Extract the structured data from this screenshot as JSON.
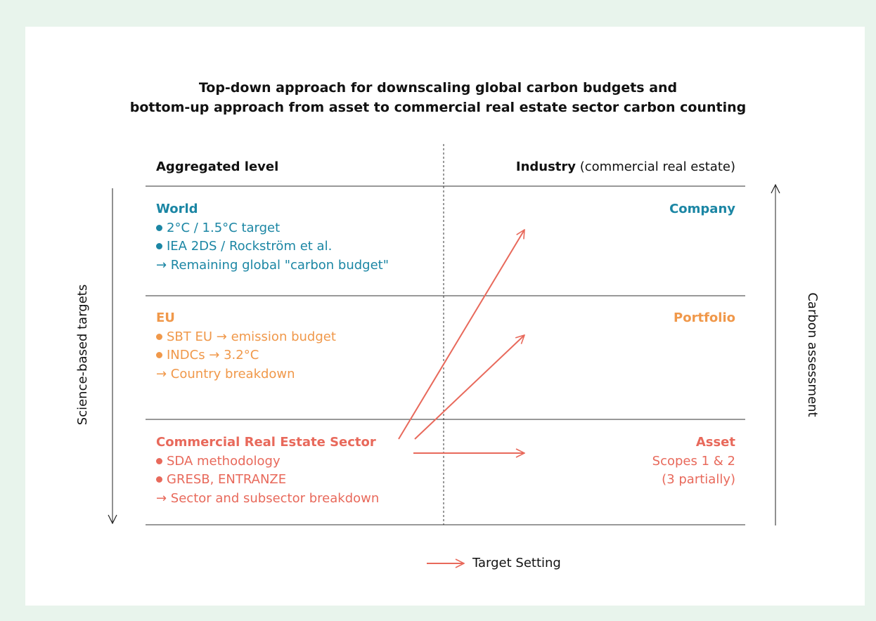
{
  "title": [
    "Top-down approach for downscaling global carbon budgets and",
    "bottom-up approach from asset to commercial real estate sector carbon counting"
  ],
  "headers": {
    "left": "Aggregated level",
    "right_bold": "Industry",
    "right_rest": " (commercial real estate)"
  },
  "axis_labels": {
    "left": "Science-based targets",
    "right": "Carbon assessment"
  },
  "rows": [
    {
      "color": "#1b86a4",
      "left": {
        "title": "World",
        "items": [
          "2°C / 1.5°C target",
          "IEA 2DS / Rockström et al.",
          "→ Remaining global \"carbon budget\""
        ]
      },
      "right": {
        "title": "Company",
        "lines": []
      }
    },
    {
      "color": "#f0984a",
      "left": {
        "title": "EU",
        "items": [
          "SBT EU → emission budget",
          "INDCs → 3.2°C",
          "→ Country breakdown"
        ]
      },
      "right": {
        "title": "Portfolio",
        "lines": []
      }
    },
    {
      "color": "#e8695b",
      "left": {
        "title": "Commercial Real Estate Sector",
        "items": [
          "SDA methodology",
          "GRESB, ENTRANZE",
          "→ Sector and subsector breakdown"
        ]
      },
      "right": {
        "title": "Asset",
        "lines": [
          "Scopes 1 & 2",
          "(3 partially)"
        ]
      }
    }
  ],
  "legend": "Target Setting"
}
